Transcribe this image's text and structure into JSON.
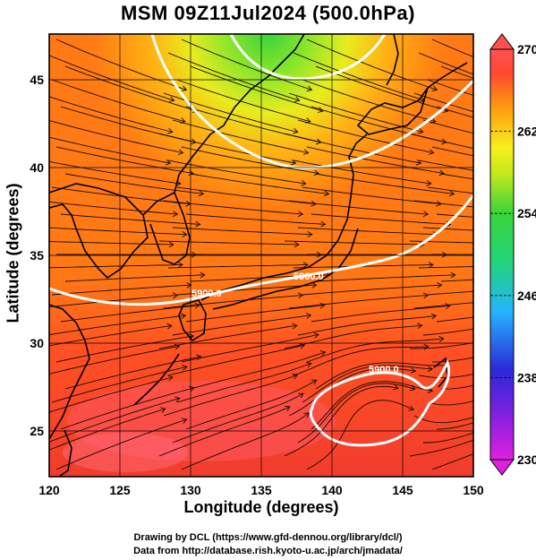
{
  "title": "MSM 09Z11Jul2024 (500.0hPa)",
  "axes": {
    "xlabel": "Longitude (degrees)",
    "ylabel": "Latitude  (degrees)",
    "x_ticks": [
      "120",
      "125",
      "130",
      "135",
      "140",
      "145",
      "150"
    ],
    "y_ticks": [
      "25",
      "30",
      "35",
      "40",
      "45"
    ],
    "x_range": [
      120,
      150
    ],
    "y_range": [
      22.4,
      47.6
    ]
  },
  "colorbar": {
    "ticks": [
      "270",
      "262",
      "254",
      "246",
      "238",
      "230"
    ],
    "range": [
      230,
      270
    ],
    "colors": [
      "#e020e0",
      "#2a2ad8",
      "#24b4ff",
      "#21d47a",
      "#3ad43a",
      "#f6f01c",
      "#ff9910",
      "#ff4a30",
      "#ff6a78"
    ]
  },
  "contour_labels": [
    {
      "text": "5900.0",
      "lon": 132.0,
      "lat": 33.6
    },
    {
      "text": "5900.0",
      "lon": 138.0,
      "lat": 34.5
    },
    {
      "text": "5900.0",
      "lon": 143.5,
      "lat": 28.8
    }
  ],
  "credits": {
    "line1": "Drawing by DCL (https://www.gfd-dennou.org/library/dcl/)",
    "line2": "Data from http://database.rish.kyoto-u.ac.jp/arch/jmadata/"
  }
}
